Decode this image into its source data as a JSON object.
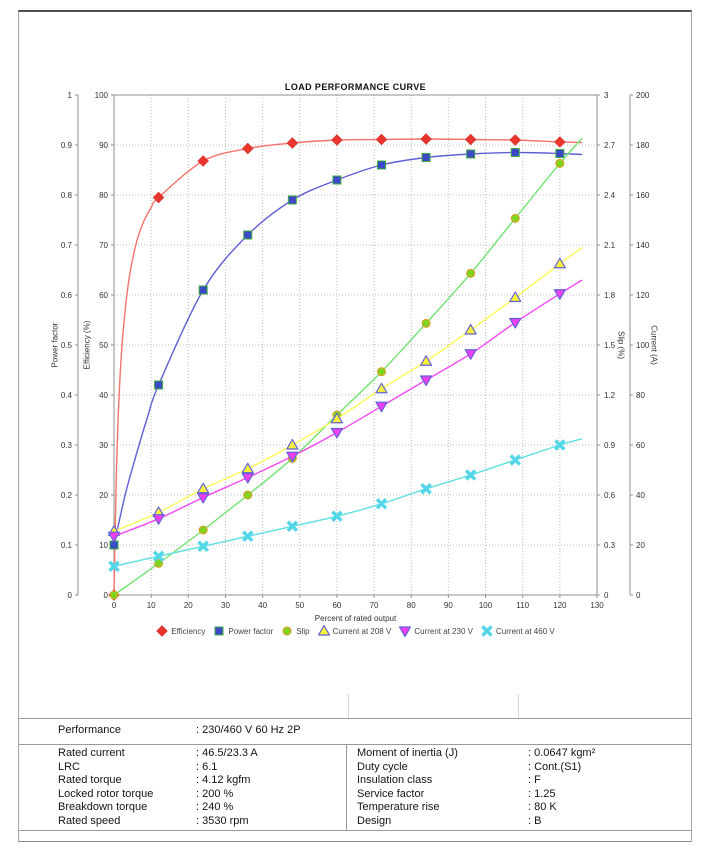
{
  "chart_data": {
    "type": "line",
    "title": "LOAD PERFORMANCE CURVE",
    "xlabel": "Percent of rated output",
    "xaxis": {
      "label": "Percent of rated output",
      "min": 0,
      "max": 130,
      "step": 10
    },
    "axes": {
      "power_factor": {
        "label": "Power factor",
        "min": 0,
        "max": 1,
        "step": 0.1
      },
      "efficiency": {
        "label": "Efficiency (%)",
        "min": 0,
        "max": 100,
        "step": 10
      },
      "slip": {
        "label": "Slip (%)",
        "min": 0,
        "max": 3,
        "step": 0.3
      },
      "current": {
        "label": "Current (A)",
        "min": 0,
        "max": 200,
        "step": 20
      }
    },
    "grid": true,
    "legend_position": "bottom",
    "x": [
      0,
      12,
      24,
      36,
      48,
      60,
      72,
      84,
      96,
      108,
      120
    ],
    "series": [
      {
        "name": "Efficiency",
        "axis": "efficiency",
        "marker": "diamond",
        "marker_fill": "#e8352e",
        "marker_stroke": "#c62a24",
        "line_color": "#f4736b",
        "values": [
          0,
          79.5,
          86.8,
          89.3,
          90.4,
          91.0,
          91.1,
          91.2,
          91.1,
          91.0,
          90.6
        ],
        "curve": [
          [
            0,
            0
          ],
          [
            0.7,
            26
          ],
          [
            1.5,
            42
          ],
          [
            2.5,
            53
          ],
          [
            4,
            63
          ],
          [
            6,
            70.4
          ],
          [
            8,
            74.7
          ],
          [
            10,
            77.5
          ],
          [
            12,
            79.5
          ],
          [
            24,
            86.8
          ],
          [
            36,
            89.3
          ],
          [
            48,
            90.4
          ],
          [
            60,
            91.0
          ],
          [
            72,
            91.1
          ],
          [
            84,
            91.2
          ],
          [
            96,
            91.1
          ],
          [
            108,
            91.0
          ],
          [
            120,
            90.6
          ],
          [
            126,
            90.5
          ]
        ]
      },
      {
        "name": "Power factor",
        "axis": "power_factor",
        "marker": "square",
        "marker_fill": "#3b49c6",
        "marker_stroke": "#3fae3f",
        "line_color": "#5f5fd7",
        "values": [
          0.1,
          0.42,
          0.61,
          0.72,
          0.79,
          0.83,
          0.86,
          0.875,
          0.882,
          0.885,
          0.883
        ],
        "curve": [
          [
            0,
            0.1
          ],
          [
            3,
            0.2
          ],
          [
            6,
            0.281
          ],
          [
            9,
            0.355
          ],
          [
            12,
            0.42
          ],
          [
            24,
            0.61
          ],
          [
            36,
            0.72
          ],
          [
            48,
            0.79
          ],
          [
            60,
            0.83
          ],
          [
            72,
            0.86
          ],
          [
            84,
            0.875
          ],
          [
            96,
            0.882
          ],
          [
            108,
            0.885
          ],
          [
            120,
            0.883
          ],
          [
            126,
            0.881
          ]
        ]
      },
      {
        "name": "Slip",
        "axis": "slip",
        "marker": "circle",
        "marker_fill": "#7fd41f",
        "marker_stroke": "#e09a20",
        "line_color": "#70e370",
        "values": [
          0,
          0.19,
          0.39,
          0.6,
          0.82,
          1.08,
          1.34,
          1.63,
          1.93,
          2.26,
          2.59
        ],
        "curve": [
          [
            0,
            0
          ],
          [
            12,
            0.19
          ],
          [
            24,
            0.39
          ],
          [
            36,
            0.6
          ],
          [
            48,
            0.82
          ],
          [
            60,
            1.08
          ],
          [
            72,
            1.34
          ],
          [
            84,
            1.63
          ],
          [
            96,
            1.93
          ],
          [
            108,
            2.26
          ],
          [
            120,
            2.59
          ],
          [
            126,
            2.74
          ]
        ]
      },
      {
        "name": "Current at 208 V",
        "axis": "current",
        "marker": "triangle-up",
        "marker_fill": "#f6f13b",
        "marker_stroke": "#6161d8",
        "line_color": "#fdfd54",
        "values": [
          25.5,
          33,
          42.5,
          50.5,
          60,
          70.5,
          82.5,
          93.5,
          106,
          119,
          132.5
        ],
        "curve": [
          [
            0,
            25.5
          ],
          [
            12,
            33
          ],
          [
            24,
            42.5
          ],
          [
            36,
            50.5
          ],
          [
            48,
            60
          ],
          [
            60,
            70.5
          ],
          [
            72,
            82.5
          ],
          [
            84,
            93.5
          ],
          [
            96,
            106
          ],
          [
            108,
            119
          ],
          [
            120,
            132.5
          ],
          [
            126,
            139
          ]
        ]
      },
      {
        "name": "Current at 230 V",
        "axis": "current",
        "marker": "triangle-down",
        "marker_fill": "#ef3ff0",
        "marker_stroke": "#6161d8",
        "line_color": "#f547f5",
        "values": [
          23.5,
          30.5,
          39,
          47,
          55.5,
          65,
          75.5,
          86,
          96.5,
          109,
          120.5
        ],
        "curve": [
          [
            0,
            23.5
          ],
          [
            12,
            30.5
          ],
          [
            24,
            39
          ],
          [
            36,
            47
          ],
          [
            48,
            55.5
          ],
          [
            60,
            65
          ],
          [
            72,
            75.5
          ],
          [
            84,
            86
          ],
          [
            96,
            96.5
          ],
          [
            108,
            109
          ],
          [
            120,
            120.5
          ],
          [
            126,
            126
          ]
        ]
      },
      {
        "name": "Current at 460 V",
        "axis": "current",
        "marker": "x",
        "marker_fill": "#53d7e8",
        "marker_stroke": "#53d7e8",
        "line_color": "#5ce0e0",
        "values": [
          11.5,
          15.5,
          19.5,
          23.5,
          27.5,
          31.5,
          36.5,
          42.5,
          48,
          54,
          60
        ],
        "curve": [
          [
            0,
            11.5
          ],
          [
            12,
            15.5
          ],
          [
            24,
            19.5
          ],
          [
            36,
            23.5
          ],
          [
            48,
            27.5
          ],
          [
            60,
            31.5
          ],
          [
            72,
            36.5
          ],
          [
            84,
            42.5
          ],
          [
            96,
            48
          ],
          [
            108,
            54
          ],
          [
            120,
            60
          ],
          [
            126,
            62.5
          ]
        ]
      }
    ]
  },
  "table": {
    "performance_label": "Performance",
    "performance_value": ": 230/460 V 60 Hz 2P",
    "left_rows": [
      {
        "label": "Rated current",
        "value": ": 46.5/23.3 A"
      },
      {
        "label": "LRC",
        "value": ": 6.1"
      },
      {
        "label": "Rated torque",
        "value": ": 4.12 kgfm"
      },
      {
        "label": "Locked rotor torque",
        "value": ": 200 %"
      },
      {
        "label": "Breakdown torque",
        "value": ": 240 %"
      },
      {
        "label": "Rated speed",
        "value": ": 3530 rpm"
      }
    ],
    "right_rows": [
      {
        "label": "Moment of inertia (J)",
        "value": ": 0.0647 kgm²"
      },
      {
        "label": "Duty cycle",
        "value": ": Cont.(S1)"
      },
      {
        "label": "Insulation class",
        "value": ": F"
      },
      {
        "label": "Service factor",
        "value": ": 1.25"
      },
      {
        "label": "Temperature rise",
        "value": ": 80 K"
      },
      {
        "label": "Design",
        "value": ": B"
      }
    ]
  }
}
